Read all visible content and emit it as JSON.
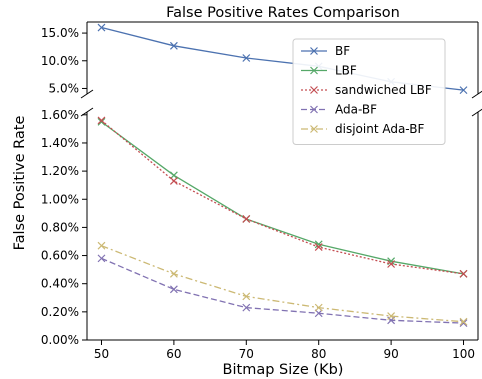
{
  "chart_data": {
    "type": "line",
    "title": "False Positive Rates Comparison",
    "xlabel": "Bitmap Size (Kb)",
    "ylabel": "False Positive Rate",
    "x": [
      50,
      60,
      70,
      80,
      90,
      100
    ],
    "x_ticks": [
      "50",
      "60",
      "70",
      "80",
      "90",
      "100"
    ],
    "broken_y_axis": true,
    "upper_panel": {
      "ylim": [
        4.0,
        17.0
      ],
      "y_ticks": [
        5.0,
        10.0,
        15.0
      ],
      "y_tick_labels": [
        "5.0%",
        "10.0%",
        "15.0%"
      ]
    },
    "lower_panel": {
      "ylim": [
        0.0,
        1.62
      ],
      "y_ticks": [
        0.0,
        0.2,
        0.4,
        0.6,
        0.8,
        1.0,
        1.2,
        1.4,
        1.6
      ],
      "y_tick_labels": [
        "0.00%",
        "0.20%",
        "0.40%",
        "0.60%",
        "0.80%",
        "1.00%",
        "1.20%",
        "1.40%",
        "1.60%"
      ]
    },
    "legend_position": "upper-right",
    "grid": false,
    "series": [
      {
        "name": "BF",
        "panel": "upper",
        "values": [
          16.0,
          12.7,
          10.5,
          9.0,
          6.2,
          4.7
        ],
        "color": "#4c72b0",
        "dash": "",
        "marker": "x"
      },
      {
        "name": "LBF",
        "panel": "lower",
        "values": [
          1.55,
          1.17,
          0.86,
          0.68,
          0.56,
          0.47
        ],
        "color": "#55a868",
        "dash": "",
        "marker": "x"
      },
      {
        "name": "sandwiched LBF",
        "panel": "lower",
        "values": [
          1.56,
          1.13,
          0.86,
          0.66,
          0.54,
          0.47
        ],
        "color": "#c44e52",
        "dash": "2,2",
        "marker": "x"
      },
      {
        "name": "Ada-BF",
        "panel": "lower",
        "values": [
          0.58,
          0.36,
          0.23,
          0.19,
          0.14,
          0.12
        ],
        "color": "#8172b2",
        "dash": "6,3",
        "marker": "x"
      },
      {
        "name": "disjoint Ada-BF",
        "panel": "lower",
        "values": [
          0.67,
          0.47,
          0.31,
          0.23,
          0.17,
          0.13
        ],
        "color": "#ccb974",
        "dash": "7,3,2,3",
        "marker": "x"
      }
    ]
  }
}
